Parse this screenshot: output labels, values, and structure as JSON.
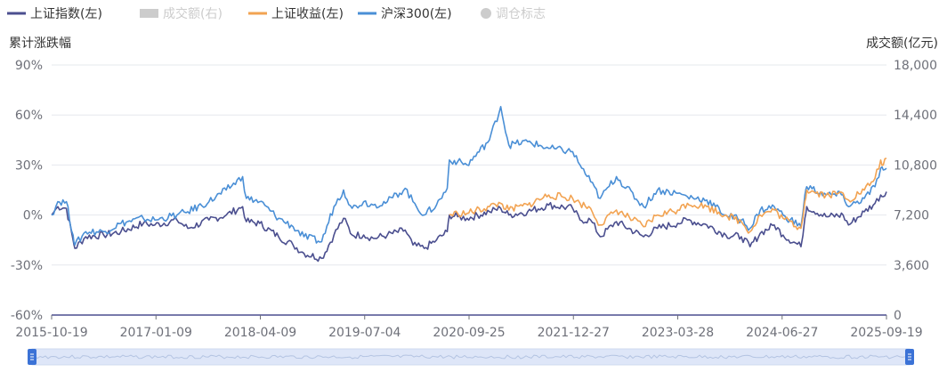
{
  "chart_data": {
    "type": "line",
    "legend": [
      {
        "name": "上证指数(左)",
        "color": "#4b4f8f",
        "marker": "line",
        "active": true
      },
      {
        "name": "成交额(右)",
        "color": "#cccccc",
        "marker": "rect",
        "active": false
      },
      {
        "name": "上证收益(左)",
        "color": "#f2a352",
        "marker": "line",
        "active": true
      },
      {
        "name": "沪深300(左)",
        "color": "#4a8fd6",
        "marker": "line",
        "active": true
      },
      {
        "name": "调仓标志",
        "color": "#cccccc",
        "marker": "circle",
        "active": false
      }
    ],
    "y_left": {
      "title": "累计涨跌幅",
      "ticks": [
        "90%",
        "60%",
        "30%",
        "0%",
        "-30%",
        "-60%"
      ],
      "values": [
        90,
        60,
        30,
        0,
        -30,
        -60
      ],
      "range": [
        -60,
        90
      ]
    },
    "y_right": {
      "title": "成交额(亿元)",
      "ticks": [
        "18,000",
        "14,400",
        "10,800",
        "7,200",
        "3,600",
        "0"
      ]
    },
    "x_ticks": [
      "2015-10-19",
      "2017-01-09",
      "2018-04-09",
      "2019-07-04",
      "2020-09-25",
      "2021-12-27",
      "2023-03-28",
      "2024-06-27",
      "2025-09-19"
    ],
    "x_range": [
      "2015-10-19",
      "2025-09-19"
    ],
    "series": [
      {
        "name": "上证指数(左)",
        "color": "#4b4f8f",
        "points": [
          [
            "2015-10-19",
            0
          ],
          [
            "2015-11-15",
            5
          ],
          [
            "2015-12-22",
            4
          ],
          [
            "2016-01-20",
            -15
          ],
          [
            "2016-01-28",
            -20
          ],
          [
            "2016-03-15",
            -13
          ],
          [
            "2016-06-01",
            -12
          ],
          [
            "2016-08-15",
            -10
          ],
          [
            "2016-11-20",
            -5
          ],
          [
            "2017-01-09",
            -6
          ],
          [
            "2017-04-15",
            -3
          ],
          [
            "2017-06-01",
            -8
          ],
          [
            "2017-09-01",
            -3
          ],
          [
            "2017-11-15",
            0
          ],
          [
            "2018-01-25",
            5
          ],
          [
            "2018-02-10",
            -4
          ],
          [
            "2018-04-09",
            -5
          ],
          [
            "2018-06-30",
            -13
          ],
          [
            "2018-09-01",
            -18
          ],
          [
            "2018-10-18",
            -23
          ],
          [
            "2019-01-03",
            -26
          ],
          [
            "2019-02-25",
            -12
          ],
          [
            "2019-04-08",
            -2
          ],
          [
            "2019-05-15",
            -12
          ],
          [
            "2019-07-04",
            -12
          ],
          [
            "2019-08-15",
            -14
          ],
          [
            "2019-10-15",
            -12
          ],
          [
            "2019-12-31",
            -9
          ],
          [
            "2020-02-03",
            -18
          ],
          [
            "2020-03-23",
            -20
          ],
          [
            "2020-05-15",
            -15
          ],
          [
            "2020-07-01",
            -10
          ],
          [
            "2020-07-10",
            0
          ],
          [
            "2020-08-15",
            -1
          ],
          [
            "2020-09-25",
            -2
          ],
          [
            "2020-12-31",
            2
          ],
          [
            "2021-02-18",
            4
          ],
          [
            "2021-03-25",
            0
          ],
          [
            "2021-06-15",
            2
          ],
          [
            "2021-09-14",
            6
          ],
          [
            "2021-12-27",
            4
          ],
          [
            "2022-01-28",
            -3
          ],
          [
            "2022-03-15",
            -3
          ],
          [
            "2022-04-26",
            -13
          ],
          [
            "2022-07-05",
            -4
          ],
          [
            "2022-10-31",
            -13
          ],
          [
            "2022-12-30",
            -8
          ],
          [
            "2023-03-28",
            -5
          ],
          [
            "2023-05-09",
            -3
          ],
          [
            "2023-08-01",
            -6
          ],
          [
            "2023-10-23",
            -12
          ],
          [
            "2023-12-29",
            -13
          ],
          [
            "2024-02-05",
            -19
          ],
          [
            "2024-03-20",
            -11
          ],
          [
            "2024-05-20",
            -6
          ],
          [
            "2024-06-27",
            -12
          ],
          [
            "2024-09-13",
            -19
          ],
          [
            "2024-09-30",
            -2
          ],
          [
            "2024-10-08",
            5
          ],
          [
            "2024-12-31",
            -1
          ],
          [
            "2025-03-15",
            0
          ],
          [
            "2025-04-07",
            -6
          ],
          [
            "2025-06-15",
            2
          ],
          [
            "2025-07-31",
            7
          ],
          [
            "2025-08-25",
            12
          ],
          [
            "2025-09-05",
            11
          ],
          [
            "2025-09-19",
            14
          ]
        ]
      },
      {
        "name": "沪深300(左)",
        "color": "#4a8fd6",
        "points": [
          [
            "2015-10-19",
            0
          ],
          [
            "2015-11-15",
            8
          ],
          [
            "2015-12-22",
            8
          ],
          [
            "2016-01-20",
            -12
          ],
          [
            "2016-01-28",
            -18
          ],
          [
            "2016-03-15",
            -10
          ],
          [
            "2016-06-01",
            -10
          ],
          [
            "2016-08-15",
            -5
          ],
          [
            "2016-11-20",
            -2
          ],
          [
            "2017-01-09",
            -3
          ],
          [
            "2017-04-15",
            0
          ],
          [
            "2017-06-01",
            2
          ],
          [
            "2017-09-01",
            8
          ],
          [
            "2017-11-15",
            15
          ],
          [
            "2018-01-25",
            23
          ],
          [
            "2018-02-10",
            10
          ],
          [
            "2018-04-09",
            8
          ],
          [
            "2018-06-30",
            -2
          ],
          [
            "2018-09-01",
            -7
          ],
          [
            "2018-10-18",
            -13
          ],
          [
            "2019-01-03",
            -16
          ],
          [
            "2019-02-25",
            5
          ],
          [
            "2019-04-08",
            15
          ],
          [
            "2019-05-15",
            4
          ],
          [
            "2019-07-04",
            8
          ],
          [
            "2019-08-15",
            6
          ],
          [
            "2019-10-15",
            8
          ],
          [
            "2019-12-31",
            16
          ],
          [
            "2020-02-03",
            8
          ],
          [
            "2020-03-23",
            0
          ],
          [
            "2020-05-15",
            6
          ],
          [
            "2020-07-01",
            16
          ],
          [
            "2020-07-10",
            33
          ],
          [
            "2020-08-15",
            32
          ],
          [
            "2020-09-25",
            30
          ],
          [
            "2020-12-31",
            45
          ],
          [
            "2021-02-18",
            65
          ],
          [
            "2021-03-25",
            42
          ],
          [
            "2021-06-15",
            44
          ],
          [
            "2021-09-14",
            40
          ],
          [
            "2021-12-27",
            38
          ],
          [
            "2022-01-28",
            30
          ],
          [
            "2022-03-15",
            20
          ],
          [
            "2022-04-26",
            10
          ],
          [
            "2022-07-05",
            23
          ],
          [
            "2022-10-31",
            5
          ],
          [
            "2022-12-30",
            15
          ],
          [
            "2023-03-28",
            13
          ],
          [
            "2023-05-09",
            11
          ],
          [
            "2023-08-01",
            9
          ],
          [
            "2023-10-23",
            0
          ],
          [
            "2023-12-29",
            -3
          ],
          [
            "2024-02-05",
            -8
          ],
          [
            "2024-03-20",
            3
          ],
          [
            "2024-05-20",
            5
          ],
          [
            "2024-06-27",
            0
          ],
          [
            "2024-09-13",
            -7
          ],
          [
            "2024-09-30",
            12
          ],
          [
            "2024-10-08",
            17
          ],
          [
            "2024-12-31",
            12
          ],
          [
            "2025-03-15",
            12
          ],
          [
            "2025-04-07",
            5
          ],
          [
            "2025-06-15",
            10
          ],
          [
            "2025-07-31",
            17
          ],
          [
            "2025-08-25",
            28
          ],
          [
            "2025-09-05",
            27
          ],
          [
            "2025-09-19",
            28
          ]
        ]
      },
      {
        "name": "上证收益(左)",
        "color": "#f2a352",
        "points": [
          [
            "2020-07-10",
            0
          ],
          [
            "2020-08-15",
            1
          ],
          [
            "2020-09-25",
            1
          ],
          [
            "2020-12-31",
            5
          ],
          [
            "2021-02-18",
            7
          ],
          [
            "2021-03-25",
            3
          ],
          [
            "2021-06-15",
            6
          ],
          [
            "2021-09-14",
            12
          ],
          [
            "2021-12-27",
            10
          ],
          [
            "2022-01-28",
            7
          ],
          [
            "2022-03-15",
            4
          ],
          [
            "2022-04-26",
            -6
          ],
          [
            "2022-07-05",
            3
          ],
          [
            "2022-10-31",
            -7
          ],
          [
            "2022-12-30",
            0
          ],
          [
            "2023-03-28",
            3
          ],
          [
            "2023-05-09",
            7
          ],
          [
            "2023-08-01",
            5
          ],
          [
            "2023-10-23",
            0
          ],
          [
            "2023-12-29",
            -4
          ],
          [
            "2024-02-05",
            -10
          ],
          [
            "2024-03-20",
            0
          ],
          [
            "2024-05-20",
            3
          ],
          [
            "2024-06-27",
            -2
          ],
          [
            "2024-09-13",
            -8
          ],
          [
            "2024-09-30",
            8
          ],
          [
            "2024-10-08",
            15
          ],
          [
            "2024-12-31",
            12
          ],
          [
            "2025-03-15",
            13
          ],
          [
            "2025-04-07",
            9
          ],
          [
            "2025-06-15",
            15
          ],
          [
            "2025-07-31",
            22
          ],
          [
            "2025-08-25",
            33
          ],
          [
            "2025-09-05",
            30
          ],
          [
            "2025-09-19",
            34
          ]
        ]
      }
    ]
  }
}
